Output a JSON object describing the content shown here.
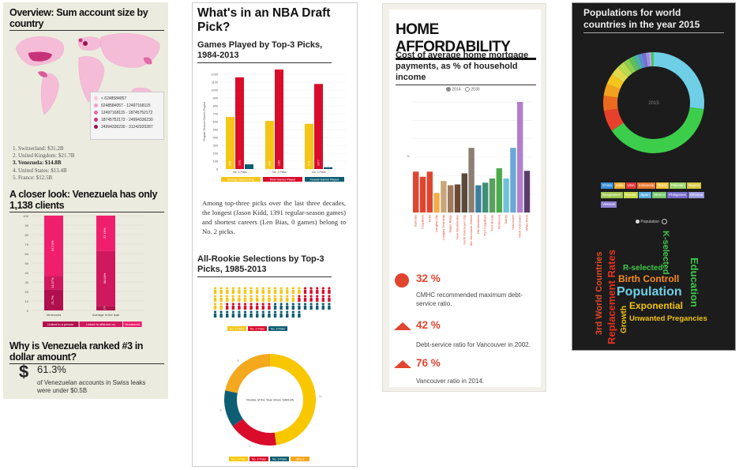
{
  "panel1": {
    "title": "Overview: Sum account size by country",
    "legend": [
      {
        "label": "< 6248584057",
        "color": "#f5c6dd"
      },
      {
        "label": "6248584057 - 12497168115",
        "color": "#ef9cc4"
      },
      {
        "label": "12497168115 - 18745752172",
        "color": "#e06aa5"
      },
      {
        "label": "18745752172 - 24994336230",
        "color": "#c7337a"
      },
      {
        "label": "24994336230 - 31242920287",
        "color": "#9c1050"
      }
    ],
    "ranking": [
      "Switzerland: $31.2B",
      "United Kingdom: $21.7B",
      "Venezuela: $14.8B",
      "United States: $13.4B",
      "France: $12.5B"
    ],
    "section2_title": "A closer look: Venezuela has only 1,138 clients",
    "bar_chart": {
      "y_ticks": [
        "100",
        "90",
        "80",
        "70",
        "60",
        "50",
        "40",
        "30",
        "20",
        "10",
        "0"
      ],
      "categories": [
        "Venezuela",
        "Average in the leak"
      ],
      "segments": [
        {
          "labels": [
            "21.7%",
            "14.57%",
            "63.74%"
          ],
          "values": [
            21.7,
            14.57,
            63.74
          ]
        },
        {
          "labels": [
            "4.77%",
            "58.04%",
            "37.19%"
          ],
          "values": [
            4.77,
            58.04,
            37.19
          ]
        }
      ],
      "series": [
        "Linked to a person",
        "Linked to offshore co.",
        "Numbered"
      ],
      "colors": [
        "#b0104e",
        "#d0185f",
        "#ef1f6e"
      ]
    },
    "section3_title": "Why is Venezuela ranked #3 in dollar amount?",
    "dollar_icon": "$",
    "stat_value": "61.3%",
    "stat_desc": "of Venezuelan accounts in Swiss leaks were under $0.5B"
  },
  "panel2": {
    "title": "What's in an NBA Draft Pick?",
    "sub1": "Games Played by Top-3 Picks, 1984-2013",
    "bar_chart": {
      "y_ticks": [
        "1200",
        "1100",
        "1000",
        "900",
        "800",
        "700",
        "600",
        "500",
        "400",
        "300",
        "200",
        "100",
        "0"
      ],
      "ylabel": "Regular Season Games Played",
      "groups": [
        {
          "label": "No. 1 Picks",
          "values": [
            659,
            1161,
            60
          ]
        },
        {
          "label": "No. 2 Picks",
          "values": [
            609,
            1391,
            0
          ]
        },
        {
          "label": "No. 3 Picks",
          "values": [
            573,
            1077,
            23
          ]
        }
      ],
      "bar_labels": [
        [
          "659",
          "1161",
          ""
        ],
        [
          "609",
          "1391",
          ""
        ],
        [
          "573",
          "1077",
          ""
        ]
      ],
      "series": [
        "Average Games Play",
        "Most Games Played",
        "Fewest Games Played"
      ],
      "colors": [
        "#f5c518",
        "#d90c2b",
        "#0e5e73"
      ]
    },
    "paragraph": "Among top-three picks over the last three decades, the longest (Jason Kidd, 1391 regular-season games) and shortest careers (Len Bias, 0 games) belong to No. 2 picks.",
    "sub2": "All-Rookie Selections by Top-3 Picks, 1985-2013",
    "people_legend": [
      "No. 1 Picks",
      "No. 2 Picks",
      "No. 3 Picks"
    ],
    "donut": {
      "center_label": "Rookie of the Year Since 1984-85",
      "values": [
        11,
        4,
        3,
        5
      ],
      "colors": [
        "#f8c700",
        "#d90c2b",
        "#0e5e73",
        "#f3a81d"
      ],
      "value_labels": [
        "11",
        "4",
        "3",
        "5"
      ],
      "legend": [
        "No. 1 Picks",
        "No. 2 Picks",
        "No. 3 Picks",
        "Others"
      ]
    }
  },
  "panel3": {
    "title": "HOME AFFORDABILITY",
    "subtitle": "Cost of average home mortgage payments, as % of household income",
    "radio_2014": "2014",
    "radio_2030": "2030",
    "ylabel": "%",
    "chart_data": {
      "type": "bar",
      "categories": [
        "Burnaby",
        "Coquitlam",
        "Delta",
        "Langley City",
        "Langley Township",
        "Maple Ridge",
        "New Westminster",
        "North Vancouver City",
        "North Vancouver District",
        "Pitt Meadows",
        "Port Coquitlam",
        "Port Moody",
        "Richmond",
        "Surrey",
        "Vancouver",
        "West Vancouver",
        "White Rock"
      ],
      "values": [
        48,
        42,
        48,
        23,
        37,
        32,
        33,
        46,
        76,
        32,
        35,
        40,
        52,
        40,
        76,
        130,
        49
      ],
      "colors": [
        "#e0452f",
        "#e0452f",
        "#e0452f",
        "#f2ad4a",
        "#c9a77a",
        "#a07a5e",
        "#6b4a36",
        "#5a4a3b",
        "#8c7f72",
        "#3f7f9e",
        "#3f8f7a",
        "#5aa05e",
        "#4faa4a",
        "#70c0d8",
        "#6aa8d8",
        "#b27fcc",
        "#5b3d6a"
      ]
    },
    "stats": [
      {
        "value": "32 %",
        "desc": "CMHC recommended maximum debt-service ratio.",
        "shape": "circle"
      },
      {
        "value": "42 %",
        "desc": "Debt-service ratio for Vancouver in 2002.",
        "shape": "triangle"
      },
      {
        "value": "76 %",
        "desc": "Vancouver ratio in 2014.",
        "shape": "triangle"
      }
    ]
  },
  "panel4": {
    "title": "Populations for world countries in the year 2015",
    "center_label": "2015",
    "tags": [
      {
        "label": "China",
        "color": "#3a8fd9"
      },
      {
        "label": "India",
        "color": "#f2b134"
      },
      {
        "label": "USA",
        "color": "#e03a3a"
      },
      {
        "label": "Indonesia",
        "color": "#e9782e"
      },
      {
        "label": "Brazil",
        "color": "#f4c542"
      },
      {
        "label": "Pakistan",
        "color": "#9ed36a"
      },
      {
        "label": "Nigeria",
        "color": "#d6c93a"
      },
      {
        "label": "Bangladesh",
        "color": "#a0c850"
      },
      {
        "label": "Russia",
        "color": "#c8d94a"
      },
      {
        "label": "Japan",
        "color": "#5ab0e0"
      },
      {
        "label": "Mexico",
        "color": "#7bc96f"
      },
      {
        "label": "Philippines",
        "color": "#7a6fd0"
      },
      {
        "label": "Ethiopia",
        "color": "#9a9ae0"
      },
      {
        "label": "Vietnam",
        "color": "#8f7fd6"
      }
    ],
    "toggle_label": "Population",
    "words": [
      {
        "text": "3rd World Countries",
        "color": "#e44a2a"
      },
      {
        "text": "Replacement Rates",
        "color": "#e4311f"
      },
      {
        "text": "R-selected",
        "color": "#3fc84a"
      },
      {
        "text": "K-selected",
        "color": "#3fc84a"
      },
      {
        "text": "Birth Controll",
        "color": "#f58c1e"
      },
      {
        "text": "Population",
        "color": "#6fd0e8"
      },
      {
        "text": "Education",
        "color": "#3fc84a"
      },
      {
        "text": "Growth",
        "color": "#f1c40f"
      },
      {
        "text": "Exponential",
        "color": "#f1c40f"
      },
      {
        "text": "Unwanted Pregancies",
        "color": "#f1c40f"
      }
    ]
  }
}
